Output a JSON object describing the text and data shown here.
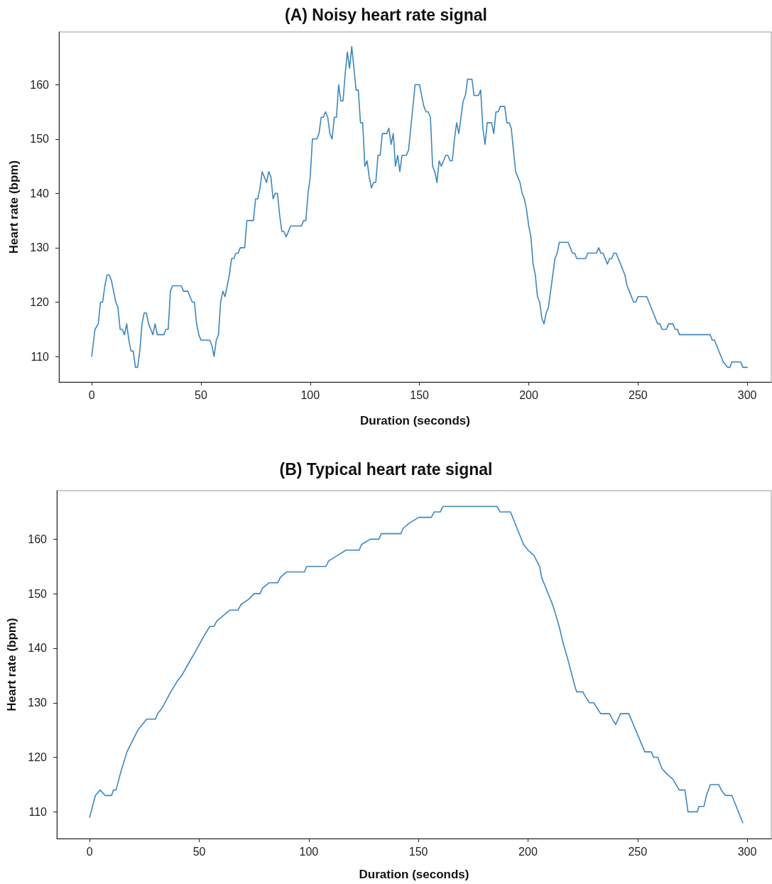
{
  "chart_data": [
    {
      "type": "line",
      "title": "(A) Noisy heart rate signal",
      "xlabel": "Duration (seconds)",
      "ylabel": "Heart rate (bpm)",
      "x": [
        0,
        1.5,
        3,
        4,
        5,
        6,
        7,
        8,
        9,
        10,
        11,
        12,
        13,
        14,
        15,
        16,
        17,
        18,
        19,
        20,
        21,
        22,
        23,
        24,
        25,
        26,
        27,
        28,
        29,
        30,
        33,
        34,
        35,
        36,
        37,
        41,
        42,
        44,
        45,
        46,
        47,
        48,
        49,
        50,
        54,
        55,
        56,
        57,
        58,
        59,
        60,
        61,
        62,
        63,
        64,
        65,
        66,
        67,
        68,
        70,
        71,
        74,
        75,
        76,
        77,
        78,
        79,
        80,
        81,
        82,
        83,
        84,
        85,
        86,
        87,
        88,
        89,
        90,
        91,
        96,
        97,
        98,
        99,
        100,
        101,
        103,
        104,
        105,
        106,
        107,
        108,
        109,
        110,
        111,
        112,
        113,
        114,
        115,
        116,
        117,
        118,
        119,
        120,
        121,
        122,
        123,
        124,
        125,
        126,
        127,
        128,
        129,
        130,
        131,
        132,
        133,
        135,
        136,
        137,
        138,
        139,
        140,
        141,
        142,
        144,
        145,
        146,
        147,
        148,
        150,
        151,
        152,
        153,
        154,
        155,
        156,
        157,
        158,
        159,
        160,
        161,
        162,
        163,
        164,
        165,
        166,
        167,
        168,
        169,
        170,
        171,
        172,
        174,
        175,
        177,
        178,
        179,
        180,
        181,
        183,
        184,
        185,
        186,
        187,
        189,
        190,
        191,
        192,
        193,
        194,
        195,
        196,
        197,
        198,
        199,
        200,
        201,
        202,
        203,
        204,
        205,
        206,
        207,
        208,
        209,
        210,
        211,
        212,
        213,
        214,
        218,
        219,
        220,
        221,
        222,
        226,
        227,
        231,
        232,
        233,
        234,
        235,
        236,
        237,
        238,
        239,
        240,
        242,
        244,
        245,
        246,
        248,
        249,
        250,
        254,
        257,
        259,
        260,
        261,
        263,
        264,
        266,
        267,
        268,
        269,
        283,
        284,
        285,
        288,
        289,
        291,
        292,
        293,
        297,
        298,
        300
      ],
      "series": [
        {
          "color": "#3a87c3",
          "values": [
            110,
            115,
            116,
            120,
            120,
            123,
            125,
            125,
            124,
            122,
            120,
            119,
            115,
            115,
            114,
            116,
            113,
            111,
            111,
            108,
            108,
            111,
            116,
            118,
            118,
            116,
            115,
            114,
            116,
            114,
            114,
            115,
            115,
            122,
            123,
            123,
            122,
            122,
            121,
            120,
            120,
            116,
            114,
            113,
            113,
            112,
            110,
            113,
            114,
            120,
            122,
            121,
            123,
            125,
            128,
            128,
            129,
            129,
            130,
            130,
            135,
            135,
            139,
            139,
            141,
            144,
            143,
            142,
            144,
            143,
            139,
            140,
            140,
            136,
            133,
            133,
            132,
            133,
            134,
            134,
            135,
            135,
            140,
            143,
            150,
            150,
            151,
            154,
            154,
            155,
            154,
            151,
            150,
            154,
            154,
            160,
            157,
            157,
            162,
            166,
            163,
            167,
            163,
            159,
            159,
            153,
            153,
            145,
            146,
            143,
            141,
            142,
            142,
            147,
            147,
            151,
            151,
            152,
            149,
            151,
            145,
            147,
            144,
            147,
            147,
            148,
            152,
            156,
            160,
            160,
            158,
            156,
            155,
            155,
            154,
            145,
            144,
            142,
            146,
            145,
            146,
            147,
            147,
            146,
            146,
            150,
            153,
            151,
            154,
            157,
            158,
            161,
            161,
            158,
            158,
            159,
            152,
            149,
            153,
            153,
            151,
            155,
            155,
            156,
            156,
            153,
            153,
            152,
            148,
            144,
            143,
            142,
            140,
            139,
            137,
            134,
            132,
            127,
            125,
            121,
            120,
            117,
            116,
            118,
            119,
            122,
            125,
            128,
            129,
            131,
            131,
            130,
            129,
            129,
            128,
            128,
            129,
            129,
            130,
            129,
            129,
            128,
            127,
            128,
            128,
            129,
            129,
            127,
            125,
            123,
            122,
            120,
            120,
            121,
            121,
            118,
            116,
            116,
            115,
            115,
            116,
            116,
            115,
            115,
            114,
            114,
            113,
            113,
            110,
            109,
            108,
            108,
            109,
            109,
            108,
            108
          ]
        }
      ],
      "xlim": [
        -15,
        311
      ],
      "ylim": [
        105.3,
        169.7
      ],
      "xticks": [
        0,
        50,
        100,
        150,
        200,
        250,
        300
      ],
      "yticks": [
        110,
        120,
        130,
        140,
        150,
        160
      ],
      "grid": false,
      "marker": "none",
      "line_style": "solid"
    },
    {
      "type": "line",
      "title": "(B) Typical heart rate signal",
      "xlabel": "Duration (seconds)",
      "ylabel": "Heart rate (bpm)",
      "x": [
        0,
        2.6,
        4.8,
        7,
        10,
        10.8,
        12,
        14,
        17,
        22,
        24,
        26,
        30,
        31,
        33,
        37,
        40,
        42,
        44.8,
        47.7,
        51.8,
        54.8,
        56.7,
        58,
        61,
        64,
        67.7,
        69,
        72.6,
        75,
        77.7,
        78.8,
        81.8,
        85.8,
        87,
        89.9,
        98,
        99,
        107.8,
        109,
        113,
        117,
        123,
        124,
        128,
        132,
        133,
        142,
        143,
        146,
        150.2,
        155.9,
        157.2,
        160,
        161.2,
        185.9,
        187.2,
        192,
        198,
        200,
        202.7,
        205.3,
        206.2,
        211.2,
        212,
        214.2,
        216,
        218.4,
        221.4,
        222.2,
        225,
        226.4,
        228,
        230,
        231.5,
        233.2,
        237.2,
        238.5,
        240,
        242.2,
        246,
        253.3,
        256.2,
        257.3,
        259.2,
        261,
        263.2,
        266.1,
        269,
        271.6,
        273,
        277.3,
        278,
        280.3,
        281.4,
        283.2,
        287,
        288.2,
        290,
        293,
        298
      ],
      "series": [
        {
          "color": "#3a87c3",
          "values": [
            109,
            113,
            114,
            113,
            113,
            114,
            114,
            117,
            121,
            125,
            126,
            127,
            127,
            128,
            129,
            132,
            134,
            135,
            137,
            139,
            142,
            144,
            144,
            145,
            146,
            147,
            147,
            148,
            149,
            150,
            150,
            151,
            152,
            152,
            153,
            154,
            154,
            155,
            155,
            156,
            157,
            158,
            158,
            159,
            160,
            160,
            161,
            161,
            162,
            163,
            164,
            164,
            165,
            165,
            166,
            166,
            165,
            165,
            159,
            158,
            157,
            155,
            153,
            148,
            147,
            144,
            141,
            137.6,
            133,
            132,
            132,
            131,
            130,
            130,
            129,
            128,
            128,
            127,
            126,
            128,
            128,
            121,
            121,
            120,
            120,
            118,
            117,
            116,
            114,
            114,
            110,
            110,
            111,
            111,
            113,
            115,
            115,
            114,
            113,
            113,
            108
          ]
        }
      ],
      "xlim": [
        -15,
        311
      ],
      "ylim": [
        105.1,
        168.9
      ],
      "xticks": [
        0,
        50,
        100,
        150,
        200,
        250,
        300
      ],
      "yticks": [
        110,
        120,
        130,
        140,
        150,
        160
      ],
      "grid": false,
      "marker": "none",
      "line_style": "solid"
    }
  ]
}
